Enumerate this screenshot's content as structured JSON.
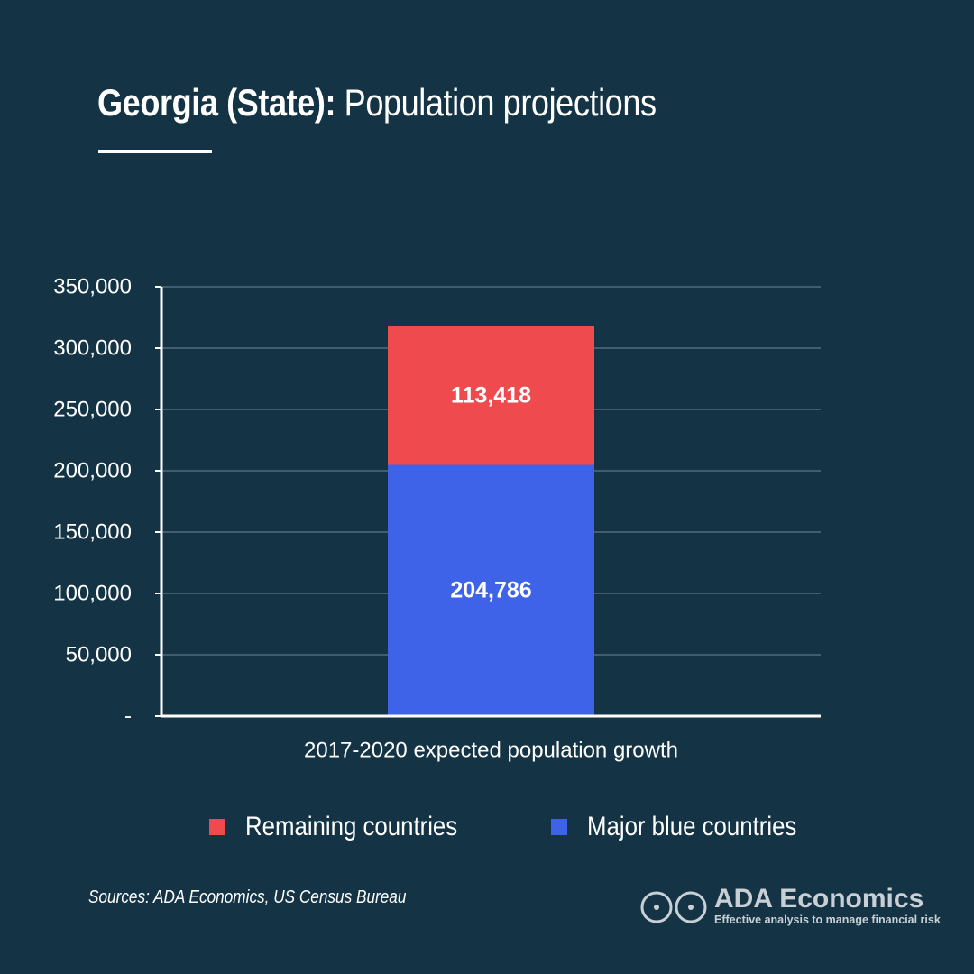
{
  "header": {
    "title_strong": "Georgia (State):",
    "title_rest": " Population projections"
  },
  "sources": "Sources: ADA Economics, US Census Bureau",
  "brand": {
    "name": "ADA Economics",
    "tagline": "Effective analysis to manage financial risk"
  },
  "colors": {
    "background": "#143445",
    "remaining": "#EF4B4F",
    "major_blue": "#3F63E8",
    "text": "#FFFFFF",
    "grid": "#6F8794",
    "brand_text": "#C8D0D5"
  },
  "chart_data": {
    "type": "bar",
    "stacked": true,
    "categories": [
      "2017-2020 expected population growth"
    ],
    "series": [
      {
        "name": "Major blue countries",
        "values": [
          204786
        ],
        "color": "#3F63E8"
      },
      {
        "name": "Remaining countries",
        "values": [
          113418
        ],
        "color": "#EF4B4F"
      }
    ],
    "data_labels": [
      "204,786",
      "113,418"
    ],
    "ylim": [
      0,
      350000
    ],
    "yticks": [
      0,
      50000,
      100000,
      150000,
      200000,
      250000,
      300000,
      350000
    ],
    "ytick_labels": [
      "-",
      "50,000",
      "100,000",
      "150,000",
      "200,000",
      "250,000",
      "300,000",
      "350,000"
    ],
    "grid": true,
    "legend": {
      "placement": "bottom",
      "entries": [
        {
          "label": "Remaining countries",
          "color": "#EF4B4F"
        },
        {
          "label": "Major blue countries",
          "color": "#3F63E8"
        }
      ]
    }
  }
}
